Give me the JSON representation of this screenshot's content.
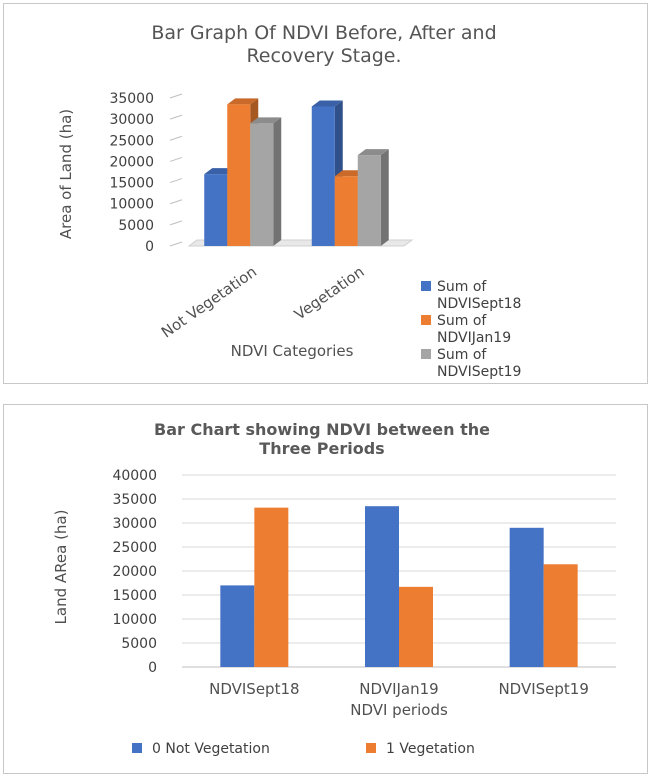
{
  "chart_data": [
    {
      "type": "bar",
      "style": "3d-clustered",
      "title_lines": [
        "Bar Graph Of NDVI Before, After and",
        "Recovery Stage."
      ],
      "xlabel": "NDVI Categories",
      "ylabel": "Area of Land (ha)",
      "categories": [
        "Not Vegetation",
        "Vegetation"
      ],
      "ylim": [
        0,
        35000
      ],
      "yticks": [
        "0",
        "5000",
        "10000",
        "15000",
        "20000",
        "25000",
        "30000",
        "35000"
      ],
      "series": [
        {
          "name": "Sum of NDVISept18",
          "legend_lines": [
            "Sum of",
            "NDVISept18"
          ],
          "color": "#4472C4",
          "values": [
            17000,
            33000
          ]
        },
        {
          "name": "Sum of NDVIJan19",
          "legend_lines": [
            "Sum of",
            "NDVIJan19"
          ],
          "color": "#ED7D31",
          "values": [
            33500,
            16500
          ]
        },
        {
          "name": "Sum of NDVISept19",
          "legend_lines": [
            "Sum of",
            "NDVISept19"
          ],
          "color": "#A5A5A5",
          "values": [
            29000,
            21500
          ]
        }
      ],
      "legend_position": "bottom-right",
      "grid": false
    },
    {
      "type": "bar",
      "title_lines": [
        "Bar Chart showing NDVI between the",
        "Three Periods"
      ],
      "xlabel": "NDVI periods",
      "ylabel": "Land ARea (ha)",
      "categories": [
        "NDVISept18",
        "NDVIJan19",
        "NDVISept19"
      ],
      "ylim": [
        0,
        40000
      ],
      "yticks": [
        "0",
        "5000",
        "10000",
        "15000",
        "20000",
        "25000",
        "30000",
        "35000",
        "40000"
      ],
      "series": [
        {
          "name": "0 Not Vegetation",
          "color": "#4472C4",
          "values": [
            17000,
            33500,
            29000
          ]
        },
        {
          "name": "1 Vegetation",
          "color": "#ED7D31",
          "values": [
            33200,
            16700,
            21400
          ]
        }
      ],
      "legend_position": "bottom",
      "grid": true
    }
  ]
}
